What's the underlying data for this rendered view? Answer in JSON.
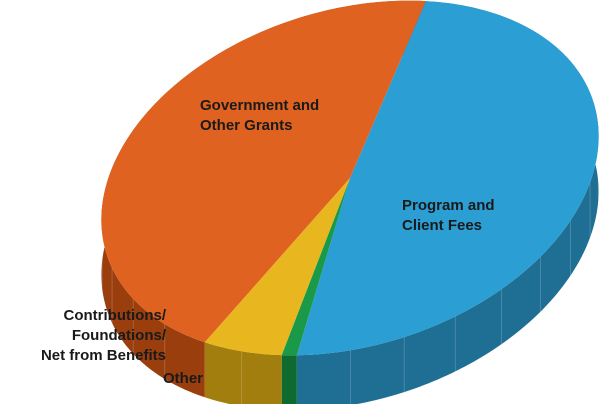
{
  "chart_data": {
    "type": "pie",
    "style": "3d",
    "legend": "none",
    "slices": [
      {
        "name": "Program and\nClient Fees",
        "value": 48.5,
        "color": "#2b9fd4",
        "side_color": "#1f6e94"
      },
      {
        "name": "Other",
        "value": 1.0,
        "color": "#1a9a48",
        "side_color": "#0f6a30"
      },
      {
        "name": "Contributions/\nFoundations/\nNet from Benefits",
        "value": 5.5,
        "color": "#e8b61e",
        "side_color": "#a17e0d"
      },
      {
        "name": "Government and\nOther Grants",
        "value": 45.0,
        "color": "#e06220",
        "side_color": "#9a3e0e"
      }
    ]
  }
}
